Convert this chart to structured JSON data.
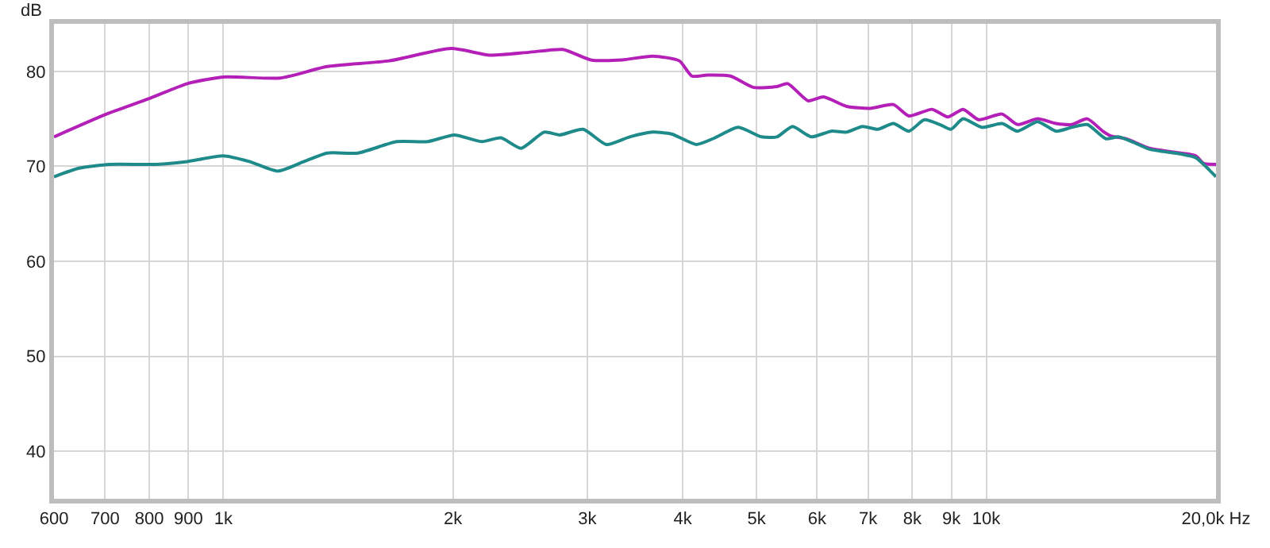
{
  "chart_data": {
    "type": "line",
    "ylabel": "dB",
    "log": "x",
    "grid": true,
    "marker": "none",
    "line_style": "solid",
    "xlim": [
      600,
      20000
    ],
    "ylim": [
      35,
      85
    ],
    "xticks": [
      600,
      700,
      800,
      900,
      {
        "value": 1000,
        "label": "1k"
      },
      {
        "value": 2000,
        "label": "2k"
      },
      {
        "value": 3000,
        "label": "3k"
      },
      {
        "value": 4000,
        "label": "4k"
      },
      {
        "value": 5000,
        "label": "5k"
      },
      {
        "value": 6000,
        "label": "6k"
      },
      {
        "value": 7000,
        "label": "7k"
      },
      {
        "value": 8000,
        "label": "8k"
      },
      {
        "value": 9000,
        "label": "9k"
      },
      {
        "value": 10000,
        "label": "10k"
      },
      {
        "value": 20000,
        "label": "20,0k Hz"
      }
    ],
    "yticks": [
      40,
      50,
      60,
      70,
      80
    ],
    "series": [
      {
        "color": "#b41fb8",
        "x": [
          600,
          703,
          798,
          897,
          1000,
          1189,
          1368,
          1649,
          1990,
          2236,
          2514,
          2786,
          3032,
          3329,
          3657,
          3961,
          4112,
          4307,
          4621,
          4956,
          5316,
          5494,
          5839,
          6119,
          6563,
          7044,
          7554,
          7917,
          8493,
          8904,
          9324,
          9773,
          10487,
          10984,
          11675,
          12347,
          12940,
          13563,
          14209,
          14551,
          15247,
          16357,
          17965,
          18822,
          19267,
          20000
        ],
        "values": [
          73.1,
          75.5,
          77.1,
          78.7,
          79.4,
          79.3,
          80.5,
          81.1,
          82.4,
          81.7,
          82.0,
          82.3,
          81.2,
          81.2,
          81.6,
          81.1,
          79.5,
          79.6,
          79.5,
          78.3,
          78.4,
          78.7,
          76.9,
          77.3,
          76.3,
          76.1,
          76.5,
          75.3,
          76.0,
          75.2,
          76.0,
          74.9,
          75.5,
          74.4,
          75.0,
          74.5,
          74.4,
          75.0,
          73.7,
          73.2,
          72.9,
          71.9,
          71.4,
          71.1,
          70.3,
          70.2
        ]
      },
      {
        "color": "#1f8a8a",
        "x": [
          600,
          647,
          710,
          817,
          897,
          1000,
          1082,
          1178,
          1276,
          1368,
          1502,
          1688,
          1854,
          2008,
          2184,
          2311,
          2456,
          2634,
          2760,
          2962,
          3177,
          3409,
          3657,
          3869,
          4170,
          4409,
          4730,
          5073,
          5316,
          5573,
          5894,
          6263,
          6563,
          6881,
          7211,
          7554,
          7917,
          8294,
          8693,
          8984,
          9324,
          9864,
          10487,
          10984,
          11675,
          12347,
          12940,
          13563,
          14346,
          14896,
          15607,
          16357,
          17965,
          18822,
          19267,
          20000
        ],
        "values": [
          68.9,
          69.8,
          70.2,
          70.2,
          70.5,
          71.1,
          70.5,
          69.5,
          70.5,
          71.4,
          71.4,
          72.6,
          72.6,
          73.3,
          72.6,
          73.0,
          71.9,
          73.6,
          73.3,
          73.9,
          72.3,
          73.1,
          73.6,
          73.4,
          72.3,
          73.0,
          74.1,
          73.1,
          73.1,
          74.2,
          73.1,
          73.7,
          73.6,
          74.2,
          73.9,
          74.5,
          73.7,
          74.9,
          74.4,
          73.9,
          75.0,
          74.1,
          74.5,
          73.7,
          74.7,
          73.7,
          74.1,
          74.4,
          72.9,
          73.1,
          72.5,
          71.8,
          71.3,
          70.9,
          70.2,
          68.9
        ]
      }
    ]
  }
}
